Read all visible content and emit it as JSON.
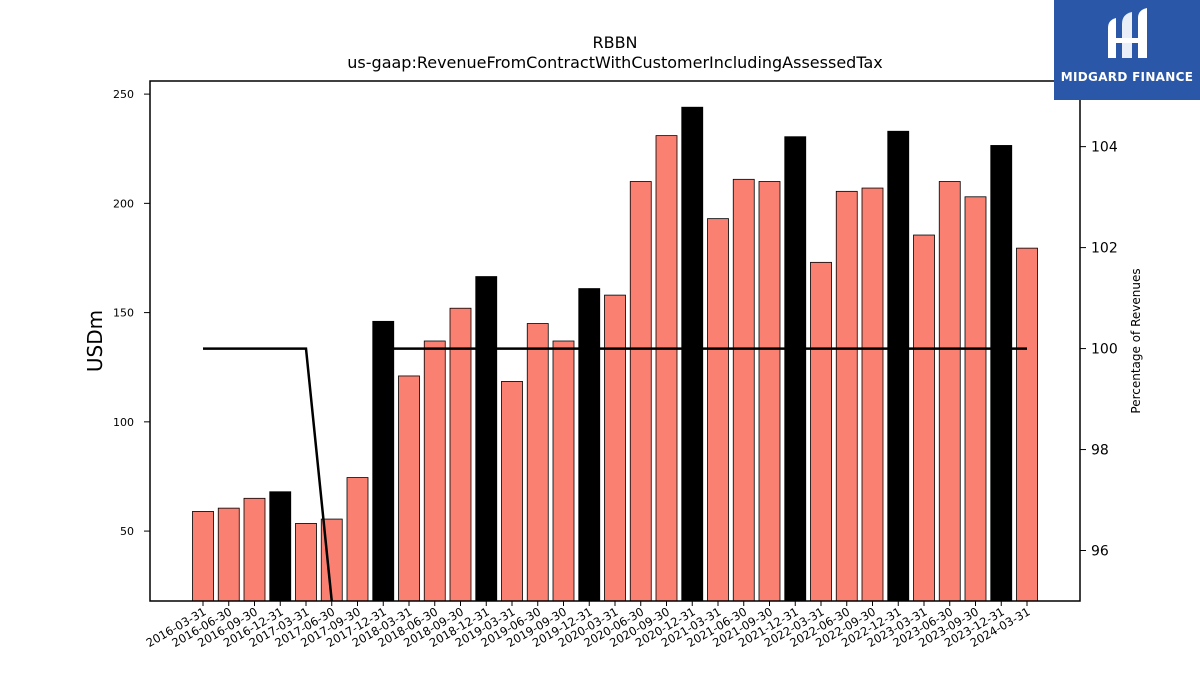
{
  "logo": {
    "text": "MIDGARD FINANCE"
  },
  "chart_data": {
    "type": "bar",
    "title": "RBBN",
    "subtitle": "us-gaap:RevenueFromContractWithCustomerIncludingAssessedTax",
    "ylabel": "USDm",
    "y2label": "Percentage of Revenues",
    "ylim": [
      18,
      256
    ],
    "y2lim": [
      95.0,
      105.3
    ],
    "yticks": [
      50,
      100,
      150,
      200,
      250
    ],
    "y2ticks": [
      96,
      98,
      100,
      102,
      104
    ],
    "colors": {
      "quarter": "#fa8072",
      "year_end": "#000000",
      "line": "#000000"
    },
    "categories": [
      "2016-03-31",
      "2016-06-30",
      "2016-09-30",
      "2016-12-31",
      "2017-03-31",
      "2017-06-30",
      "2017-09-30",
      "2017-12-31",
      "2018-03-31",
      "2018-06-30",
      "2018-09-30",
      "2018-12-31",
      "2019-03-31",
      "2019-06-30",
      "2019-09-30",
      "2019-12-31",
      "2020-03-31",
      "2020-06-30",
      "2020-09-30",
      "2020-12-31",
      "2021-03-31",
      "2021-06-30",
      "2021-09-30",
      "2021-12-31",
      "2022-03-31",
      "2022-06-30",
      "2022-09-30",
      "2022-12-31",
      "2023-03-31",
      "2023-06-30",
      "2023-09-30",
      "2023-12-31",
      "2024-03-31"
    ],
    "series": [
      {
        "values": [
          59,
          60.5,
          65,
          68,
          53.5,
          55.5,
          74.5,
          146,
          121,
          137,
          152,
          166.5,
          118.5,
          145,
          137,
          161,
          158,
          210,
          231,
          244,
          193,
          211,
          210,
          230.5,
          173,
          205.5,
          207,
          233,
          185.5,
          210,
          203,
          226.5,
          179.5
        ]
      },
      {
        "axis": "right",
        "values": [
          100,
          100,
          100,
          100,
          100,
          94.8,
          null,
          100,
          100,
          100,
          100,
          100,
          100,
          100,
          100,
          100,
          100,
          100,
          100,
          100,
          100,
          100,
          100,
          100,
          100,
          100,
          100,
          100,
          100,
          100,
          100,
          100,
          100
        ]
      }
    ],
    "year_end_indices": [
      3,
      7,
      11,
      15,
      19,
      23,
      27,
      31
    ]
  }
}
